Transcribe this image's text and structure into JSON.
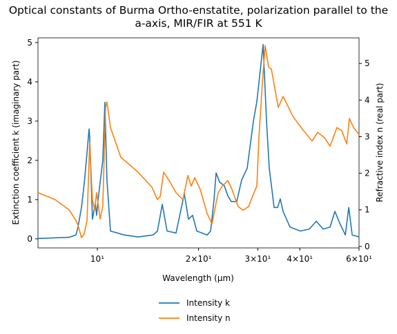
{
  "chart_data": {
    "type": "line",
    "title": "Optical constants of Burma Ortho-enstatite, polarization parallel to the a-axis, MIR/FIR at 551 K",
    "x_label": "Wavelength (μm)",
    "y_label": "Extinction coefficient k (imaginary part)",
    "y2_label": "Refractive index n (real part)",
    "x_scale": "log",
    "xlim": [
      6.66,
      60
    ],
    "xticks": [
      {
        "value": 10,
        "label": "10¹"
      },
      {
        "value": 20,
        "label": "2×10¹"
      },
      {
        "value": 30,
        "label": "3×10¹"
      },
      {
        "value": 40,
        "label": "4×10¹"
      },
      {
        "value": 60,
        "label": "6×10¹"
      }
    ],
    "ylim": [
      -0.23,
      5.12
    ],
    "yticks": [
      0,
      1,
      2,
      3,
      4,
      5
    ],
    "y2lim": [
      -0.04,
      5.7
    ],
    "y2ticks": [
      0,
      1,
      2,
      3,
      4,
      5
    ],
    "legend": "lower center outside",
    "series": [
      {
        "name": "Intensity k",
        "color": "#1f77b4",
        "axis": "y",
        "x": [
          6.66,
          8.24,
          8.64,
          8.76,
          8.97,
          9.14,
          9.32,
          9.45,
          9.49,
          9.67,
          9.86,
          9.95,
          10.05,
          10.38,
          10.53,
          10.68,
          10.94,
          12.02,
          13.22,
          14.66,
          15.09,
          15.6,
          16.12,
          17.14,
          18.14,
          18.66,
          19.2,
          19.76,
          21.21,
          21.72,
          22.23,
          22.55,
          23.09,
          23.86,
          24.43,
          25.02,
          25.98,
          26.86,
          27.9,
          29.11,
          29.81,
          31.11,
          31.85,
          32.45,
          33.55,
          34.35,
          35.0,
          35.67,
          37.41,
          40.16,
          42.7,
          44.77,
          46.93,
          49.2,
          50.87,
          52.57,
          54.63,
          55.92,
          57.26,
          60
        ],
        "values": [
          0.01,
          0.04,
          0.1,
          0.3,
          0.8,
          1.4,
          2.2,
          2.8,
          2.6,
          0.5,
          0.9,
          0.6,
          1.0,
          2.0,
          3.48,
          1.5,
          0.2,
          0.1,
          0.05,
          0.1,
          0.2,
          0.88,
          0.2,
          0.15,
          1.15,
          0.5,
          0.6,
          0.2,
          0.1,
          0.2,
          1.0,
          1.68,
          1.45,
          1.35,
          1.1,
          0.95,
          0.95,
          1.5,
          1.8,
          3.0,
          3.5,
          4.95,
          3.0,
          1.8,
          0.8,
          0.8,
          1.02,
          0.7,
          0.3,
          0.2,
          0.25,
          0.45,
          0.25,
          0.3,
          0.7,
          0.4,
          0.1,
          0.8,
          0.1,
          0.05
        ]
      },
      {
        "name": "Intensity n",
        "color": "#ff7f0e",
        "axis": "y2",
        "x": [
          6.66,
          7.49,
          8.24,
          8.64,
          8.76,
          8.97,
          9.14,
          9.32,
          9.49,
          9.67,
          9.81,
          9.95,
          10.19,
          10.38,
          10.58,
          10.68,
          10.94,
          11.74,
          13.22,
          14.53,
          15.09,
          15.38,
          15.75,
          16.35,
          17.14,
          17.97,
          18.58,
          19.02,
          19.48,
          20.23,
          21.21,
          21.93,
          22.44,
          22.87,
          23.53,
          24.43,
          25.14,
          26.23,
          27.12,
          28.17,
          29.11,
          29.81,
          30.23,
          30.96,
          31.55,
          32.3,
          32.92,
          34.51,
          35.67,
          38.3,
          41.11,
          43.51,
          45.19,
          47.38,
          49.2,
          51.59,
          53.34,
          55.15,
          56.18,
          57.79,
          60
        ],
        "values": [
          1.47,
          1.28,
          1.0,
          0.71,
          0.58,
          0.24,
          0.35,
          0.71,
          2.84,
          1.28,
          1.0,
          1.47,
          0.75,
          1.1,
          3.8,
          3.95,
          3.25,
          2.44,
          2.03,
          1.62,
          1.28,
          1.37,
          2.03,
          1.8,
          1.47,
          1.28,
          1.94,
          1.65,
          1.88,
          1.56,
          0.9,
          0.62,
          1.09,
          1.47,
          1.65,
          1.8,
          1.56,
          1.09,
          0.99,
          1.09,
          1.43,
          1.65,
          2.97,
          4.48,
          5.49,
          4.9,
          4.85,
          3.8,
          4.1,
          3.53,
          3.16,
          2.88,
          3.12,
          2.97,
          2.74,
          3.25,
          3.16,
          2.8,
          3.5,
          3.25,
          3.06
        ]
      }
    ]
  }
}
